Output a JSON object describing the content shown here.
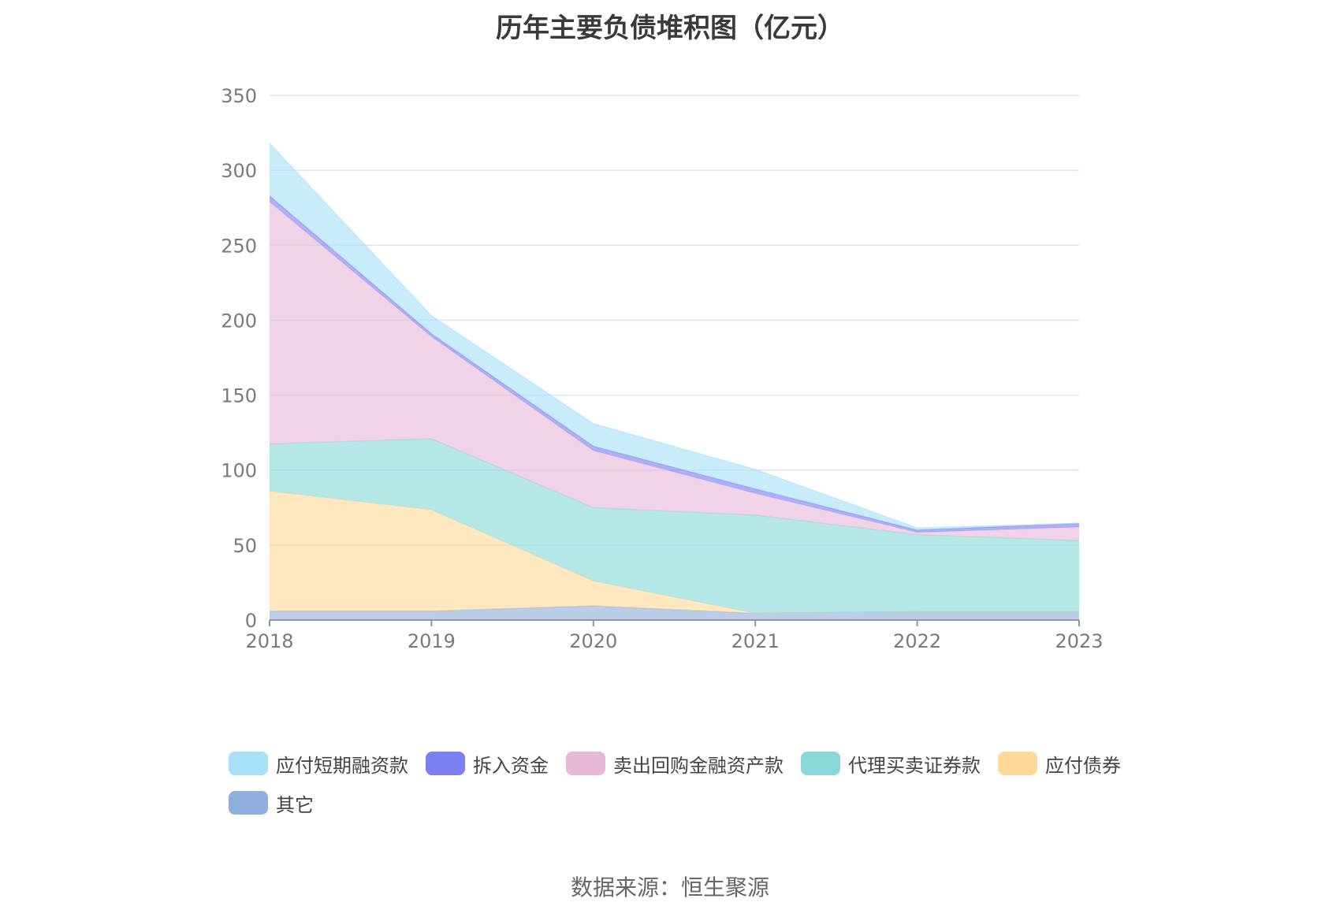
{
  "chart_data": {
    "type": "area",
    "stacked": true,
    "title": "历年主要负债堆积图（亿元）",
    "categories": [
      "2018",
      "2019",
      "2020",
      "2021",
      "2022",
      "2023"
    ],
    "ylim": [
      0,
      350
    ],
    "yticks": [
      0,
      50,
      100,
      150,
      200,
      250,
      300,
      350
    ],
    "grid": true,
    "legend_position": "bottom",
    "series": [
      {
        "name": "其它",
        "color": "#8fb0dc",
        "values": [
          6,
          6,
          9.5,
          4.5,
          5.5,
          5.5
        ]
      },
      {
        "name": "应付债券",
        "color": "#ffd99a",
        "values": [
          80,
          67.5,
          16.5,
          0,
          0,
          0
        ]
      },
      {
        "name": "代理买卖证券款",
        "color": "#88d8d8",
        "values": [
          31.5,
          47.5,
          49,
          65.5,
          51.5,
          47.5
        ]
      },
      {
        "name": "卖出回购金融资产款",
        "color": "#e8b8d8",
        "values": [
          161.5,
          68,
          38,
          14.5,
          1.5,
          9
        ]
      },
      {
        "name": "拆入资金",
        "color": "#7b7ff0",
        "values": [
          4,
          2,
          3,
          3,
          1.5,
          2.5
        ]
      },
      {
        "name": "应付短期融资款",
        "color": "#a8e0f8",
        "values": [
          35,
          12,
          15,
          13,
          1.5,
          0
        ]
      }
    ],
    "legend_order": [
      "应付短期融资款",
      "拆入资金",
      "卖出回购金融资产款",
      "代理买卖证券款",
      "应付债券",
      "其它"
    ]
  },
  "source_text": "数据来源：恒生聚源"
}
